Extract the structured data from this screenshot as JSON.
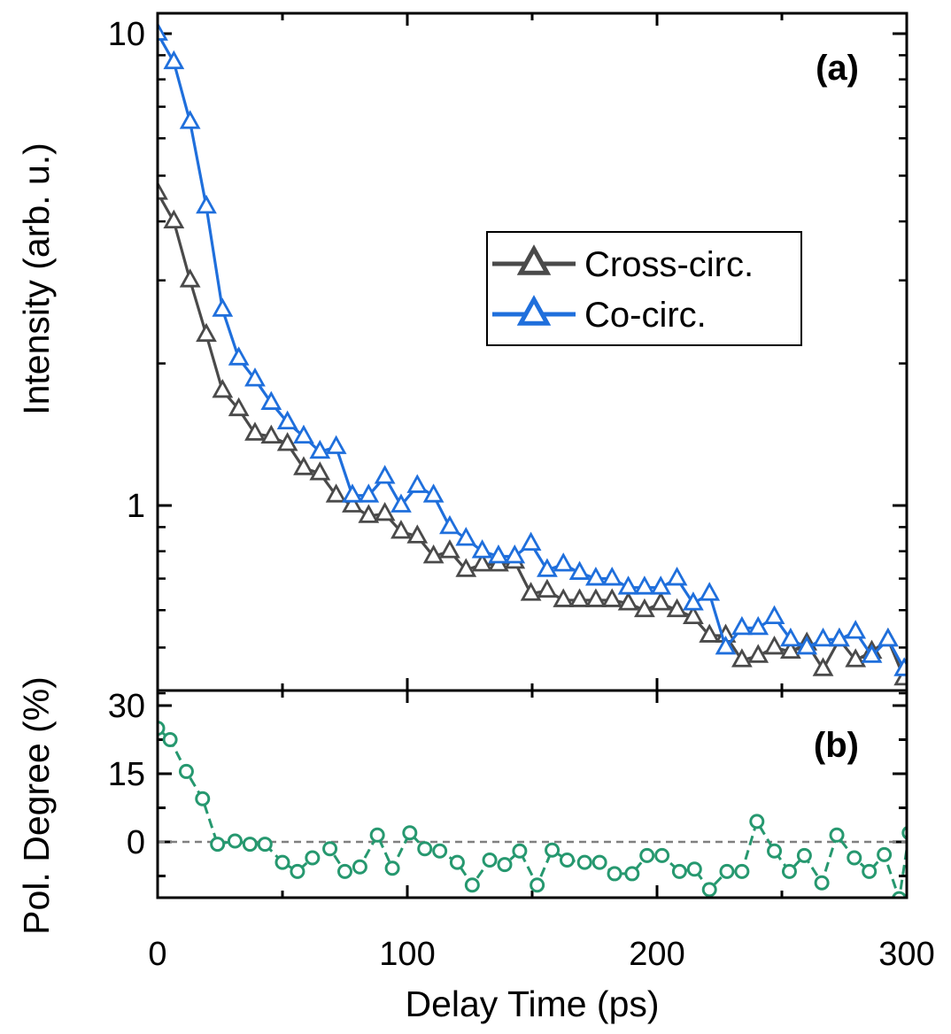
{
  "chart_data": [
    {
      "panel": "a",
      "type": "line",
      "panel_label": "(a)",
      "ylabel": "Intensity (arb. u.)",
      "yscale": "log",
      "ylim": [
        0.4,
        10
      ],
      "xlim": [
        0,
        300
      ],
      "y_ticks": [
        {
          "value": 1,
          "label": "1"
        },
        {
          "value": 10,
          "label": "10"
        }
      ],
      "legend_position": "center-right",
      "x": [
        0,
        6.5,
        13,
        19.5,
        26,
        32.5,
        39,
        45.5,
        52,
        58.5,
        65,
        71.5,
        78,
        84.5,
        91,
        97.5,
        104,
        110.5,
        117,
        123.5,
        130,
        136.5,
        143,
        149.5,
        156,
        162.5,
        169,
        175.5,
        182,
        188.5,
        195,
        201.5,
        208,
        214.5,
        221,
        227.5,
        234,
        240.5,
        247,
        253.5,
        260,
        266.5,
        273,
        279.5,
        286,
        292.5,
        299
      ],
      "series": [
        {
          "name": "Cross-circ.",
          "color": "#4a4a4a",
          "marker": "triangle-open",
          "values": [
            4.6,
            4.0,
            3.0,
            2.3,
            1.75,
            1.6,
            1.42,
            1.4,
            1.35,
            1.2,
            1.17,
            1.05,
            1.0,
            0.95,
            0.96,
            0.88,
            0.86,
            0.78,
            0.8,
            0.73,
            0.75,
            0.75,
            0.76,
            0.65,
            0.66,
            0.63,
            0.63,
            0.63,
            0.63,
            0.62,
            0.6,
            0.62,
            0.6,
            0.58,
            0.53,
            0.53,
            0.47,
            0.48,
            0.5,
            0.49,
            0.51,
            0.45,
            0.52,
            0.47,
            0.49,
            0.52,
            0.43
          ]
        },
        {
          "name": "Co-circ.",
          "color": "#1f6fdc",
          "marker": "triangle-open",
          "values": [
            10.0,
            8.7,
            6.5,
            4.3,
            2.6,
            2.05,
            1.85,
            1.65,
            1.5,
            1.4,
            1.3,
            1.33,
            1.05,
            1.05,
            1.15,
            1.0,
            1.1,
            1.05,
            0.9,
            0.85,
            0.8,
            0.78,
            0.78,
            0.83,
            0.73,
            0.75,
            0.72,
            0.7,
            0.7,
            0.67,
            0.67,
            0.67,
            0.7,
            0.62,
            0.65,
            0.5,
            0.55,
            0.55,
            0.58,
            0.52,
            0.5,
            0.52,
            0.52,
            0.54,
            0.48,
            0.52,
            0.45
          ]
        }
      ]
    },
    {
      "panel": "b",
      "type": "line",
      "panel_label": "(b)",
      "ylabel": "Pol. Degree (%)",
      "ylim": [
        -12,
        33
      ],
      "xlim": [
        0,
        300
      ],
      "y_ticks": [
        {
          "value": 0,
          "label": "0"
        },
        {
          "value": 15,
          "label": "15"
        },
        {
          "value": 30,
          "label": "30"
        }
      ],
      "zero_line": true,
      "series": [
        {
          "name": "Pol. Degree",
          "color": "#26986f",
          "marker": "circle-open",
          "x": [
            0,
            5,
            11.5,
            18,
            24,
            31,
            37,
            43,
            50,
            56,
            62,
            69,
            75,
            81,
            88,
            94,
            101,
            107,
            113,
            120,
            126,
            133,
            139,
            145,
            152,
            158,
            164,
            171,
            177,
            183,
            190,
            196,
            202,
            209,
            215,
            221,
            228,
            234,
            240,
            247,
            253,
            259,
            266,
            272,
            279,
            285,
            291,
            297,
            301
          ],
          "values": [
            25,
            22.5,
            15.5,
            9.5,
            -0.5,
            0.2,
            -0.5,
            -0.5,
            -4.5,
            -6.5,
            -3.5,
            -1.5,
            -6.5,
            -5.5,
            1.5,
            -5.8,
            2,
            -1.5,
            -2,
            -4.5,
            -9.5,
            -4,
            -5,
            -2,
            -9.5,
            -1.8,
            -4,
            -4.5,
            -4.5,
            -7,
            -7,
            -3,
            -3,
            -6.5,
            -6,
            -10.5,
            -6.5,
            -6.5,
            4.5,
            -2,
            -6.5,
            -3,
            -9,
            1.5,
            -3.5,
            -6.5,
            -2.8,
            -12.5,
            2
          ]
        }
      ]
    },
    {
      "panel": "shared-x",
      "type": "line",
      "xlabel": "Delay Time (ps)",
      "x_ticks": [
        {
          "value": 0,
          "label": "0"
        },
        {
          "value": 100,
          "label": "100"
        },
        {
          "value": 200,
          "label": "200"
        },
        {
          "value": 300,
          "label": "300"
        }
      ]
    }
  ]
}
